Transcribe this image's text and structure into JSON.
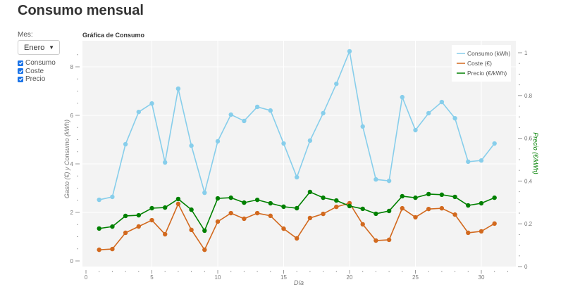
{
  "page": {
    "title": "Consumo mensual"
  },
  "controls": {
    "mes_label": "Mes:",
    "mes_selected": "Enero",
    "checkboxes": [
      {
        "label": "Consumo",
        "checked": true
      },
      {
        "label": "Coste",
        "checked": true
      },
      {
        "label": "Precio",
        "checked": true
      }
    ]
  },
  "colors": {
    "consumo": "#87ceeb",
    "coste": "#d2691e",
    "precio": "#008000",
    "plot_bg": "#f3f3f3",
    "checkbox": "#1a73e8"
  },
  "chart_data": {
    "type": "line",
    "title": "Gráfica de Consumo",
    "xlabel": "Día",
    "ylabel": "Gasto (€) y Consumo (kWh)",
    "y2label": "Precio (€/kWh)",
    "xlim": [
      0,
      32
    ],
    "ylim": [
      0,
      9
    ],
    "y2lim": [
      0,
      1.02
    ],
    "x_ticks": [
      0,
      5,
      10,
      15,
      20,
      25,
      30
    ],
    "y_ticks": [
      0,
      2,
      4,
      6,
      8
    ],
    "y2_ticks": [
      0,
      0.2,
      0.4,
      0.6,
      0.8,
      1
    ],
    "grid": true,
    "legend_position": "top-right",
    "x": [
      1,
      2,
      3,
      4,
      5,
      6,
      7,
      8,
      9,
      10,
      11,
      12,
      13,
      14,
      15,
      16,
      17,
      18,
      19,
      20,
      21,
      22,
      23,
      24,
      25,
      26,
      27,
      28,
      29,
      30,
      31
    ],
    "series": [
      {
        "name": "Consumo (kWh)",
        "axis": "left",
        "color": "#87ceeb",
        "values": [
          2.52,
          2.64,
          4.81,
          6.14,
          6.49,
          4.06,
          7.1,
          4.75,
          2.81,
          4.93,
          6.03,
          5.77,
          6.35,
          6.2,
          4.84,
          3.45,
          4.96,
          6.09,
          7.3,
          8.64,
          5.54,
          3.36,
          3.3,
          6.75,
          5.39,
          6.09,
          6.55,
          5.88,
          4.09,
          4.14,
          4.84
        ]
      },
      {
        "name": "Coste (€)",
        "axis": "left",
        "color": "#d2691e",
        "values": [
          0.46,
          0.49,
          1.16,
          1.42,
          1.68,
          1.1,
          2.35,
          1.28,
          0.46,
          1.62,
          1.97,
          1.74,
          1.97,
          1.86,
          1.33,
          0.93,
          1.77,
          1.94,
          2.23,
          2.38,
          1.51,
          0.84,
          0.87,
          2.17,
          1.8,
          2.14,
          2.17,
          1.91,
          1.16,
          1.22,
          1.54
        ]
      },
      {
        "name": "Precio (€/kWh)",
        "axis": "right",
        "color": "#008000",
        "values": [
          0.178,
          0.187,
          0.237,
          0.24,
          0.273,
          0.276,
          0.316,
          0.266,
          0.168,
          0.319,
          0.322,
          0.299,
          0.312,
          0.296,
          0.28,
          0.273,
          0.349,
          0.322,
          0.309,
          0.283,
          0.27,
          0.247,
          0.26,
          0.329,
          0.322,
          0.339,
          0.336,
          0.326,
          0.286,
          0.296,
          0.322
        ]
      }
    ]
  }
}
